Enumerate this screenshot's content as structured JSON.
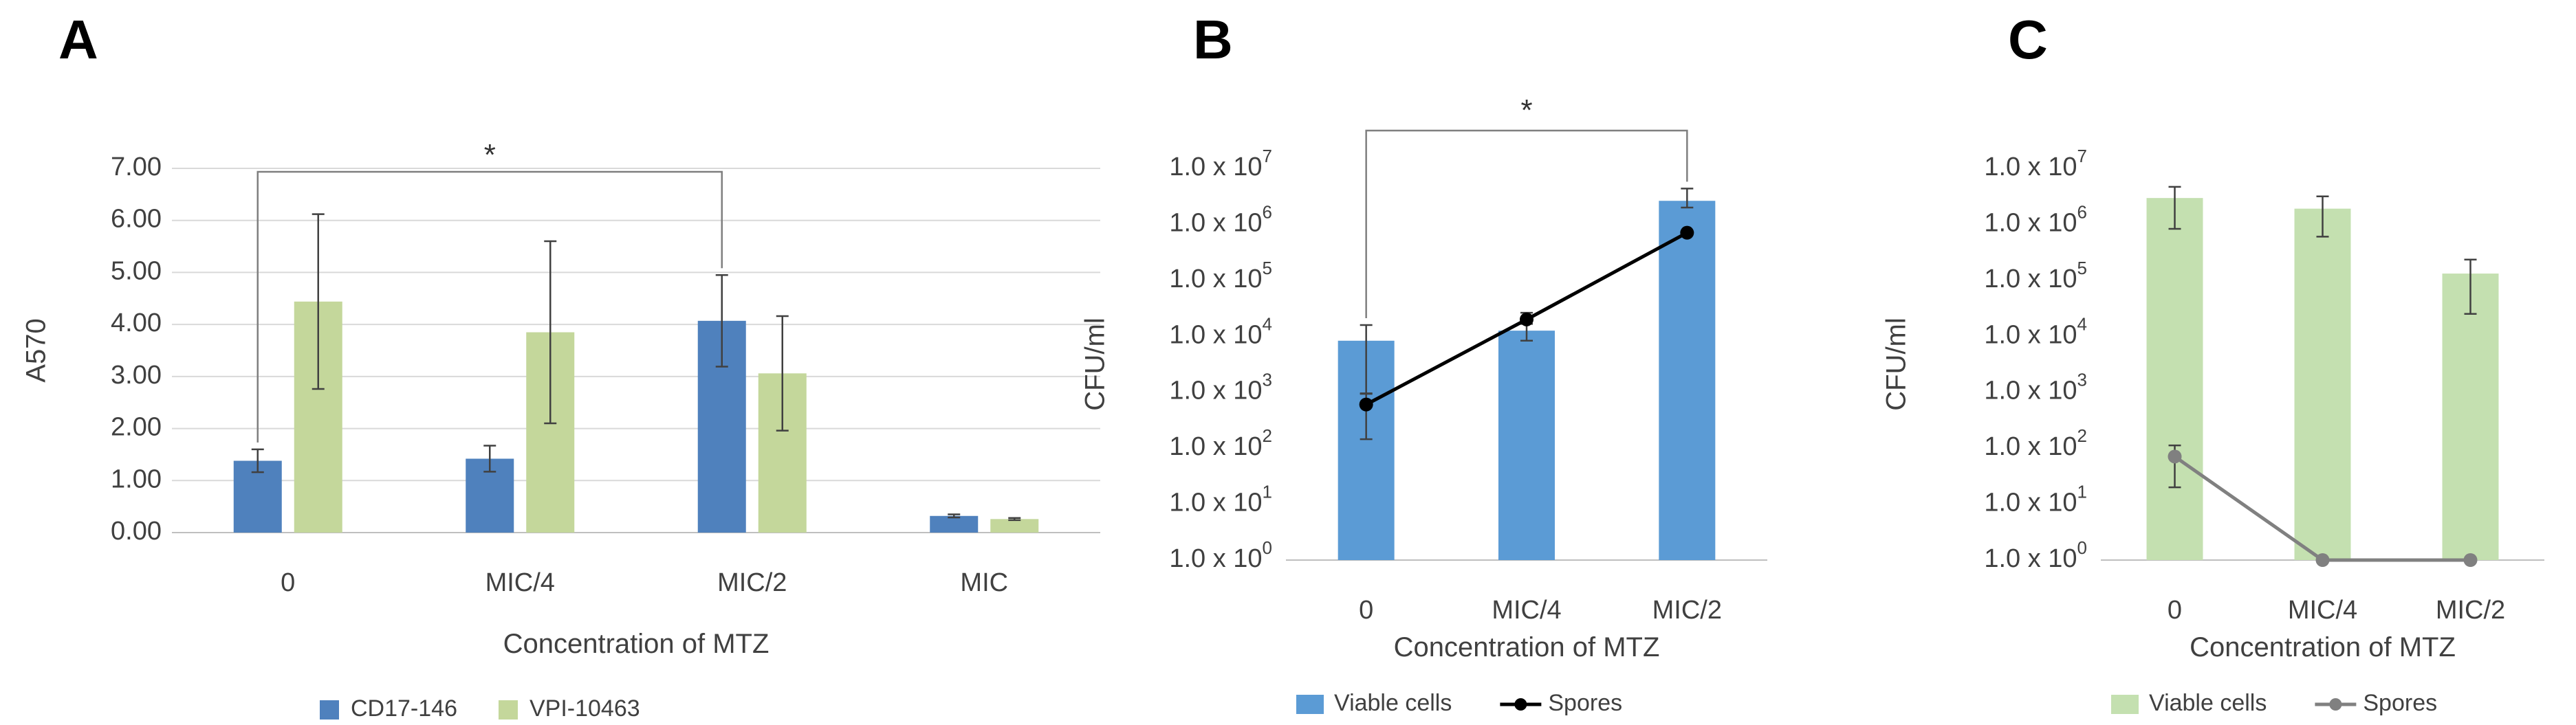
{
  "chart_data": [
    {
      "panel": "A",
      "type": "bar",
      "title": "",
      "xlabel": "Concentration of MTZ",
      "ylabel": "A570",
      "categories": [
        "0",
        "MIC/4",
        "MIC/2",
        "MIC"
      ],
      "ylim": [
        0,
        7
      ],
      "yticks": [
        "0.00",
        "1.00",
        "2.00",
        "3.00",
        "4.00",
        "5.00",
        "6.00",
        "7.00"
      ],
      "grid": true,
      "legend_position": "bottom",
      "series": [
        {
          "name": "CD17-146",
          "color": "#4f81bd",
          "values": [
            1.38,
            1.42,
            4.07,
            0.32
          ],
          "errors": [
            0.22,
            0.25,
            0.88,
            0.03
          ]
        },
        {
          "name": "VPI-10463",
          "color": "#c4d79b",
          "values": [
            4.44,
            3.85,
            3.06,
            0.26
          ],
          "errors": [
            1.68,
            1.75,
            1.1,
            0.02
          ]
        }
      ],
      "significance": {
        "label": "*",
        "from": "0",
        "to": "MIC/2"
      }
    },
    {
      "panel": "B",
      "type": "bar",
      "title": "",
      "xlabel": "Concentration of MTZ",
      "ylabel": "CFU/ml",
      "yscale": "log",
      "categories": [
        "0",
        "MIC/4",
        "MIC/2"
      ],
      "ylim_exp": [
        0,
        7
      ],
      "ytick_base": "1.0 x 10",
      "yticks_exp": [
        "0",
        "1",
        "2",
        "3",
        "4",
        "5",
        "6",
        "7"
      ],
      "grid": false,
      "legend_position": "bottom",
      "series": [
        {
          "name": "Viable cells",
          "kind": "bar",
          "color": "#5b9bd5",
          "log_values": [
            3.92,
            4.1,
            6.42
          ],
          "log_error_low": [
            0.95,
            0.18,
            0.12
          ],
          "log_error_high": [
            0.28,
            0.12,
            0.22
          ]
        },
        {
          "name": "Spores",
          "kind": "line",
          "color": "#000000",
          "log_values": [
            2.78,
            4.3,
            5.85
          ],
          "log_error_low": [
            0.62,
            0.0,
            0.0
          ],
          "log_error_high": [
            0.2,
            0.12,
            0.0
          ]
        }
      ],
      "significance": {
        "label": "*",
        "from": "0",
        "to": "MIC/2"
      }
    },
    {
      "panel": "C",
      "type": "bar",
      "title": "",
      "xlabel": "Concentration of MTZ",
      "ylabel": "CFU/ml",
      "yscale": "log",
      "categories": [
        "0",
        "MIC/4",
        "MIC/2"
      ],
      "ylim_exp": [
        0,
        7
      ],
      "ytick_base": "1.0 x 10",
      "yticks_exp": [
        "0",
        "1",
        "2",
        "3",
        "4",
        "5",
        "6",
        "7"
      ],
      "grid": false,
      "legend_position": "bottom",
      "series": [
        {
          "name": "Viable cells",
          "kind": "bar",
          "color": "#c4e0b0",
          "log_values": [
            6.47,
            6.28,
            5.12
          ],
          "log_error_low": [
            0.55,
            0.5,
            0.72
          ],
          "log_error_high": [
            0.2,
            0.22,
            0.25
          ]
        },
        {
          "name": "Spores",
          "kind": "line",
          "color": "#808080",
          "log_values": [
            1.85,
            0.0,
            0.0
          ],
          "log_error_low": [
            0.55,
            0.0,
            0.0
          ],
          "log_error_high": [
            0.2,
            0.0,
            0.0
          ]
        }
      ]
    }
  ]
}
